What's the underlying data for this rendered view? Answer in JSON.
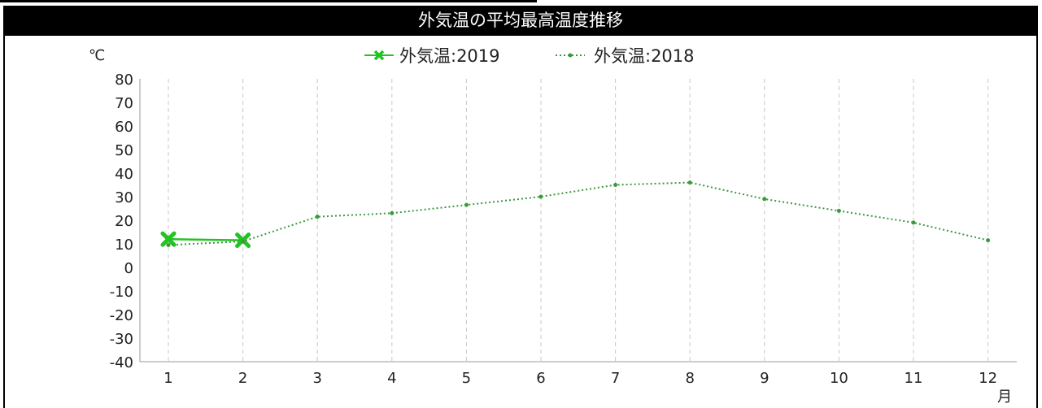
{
  "chart_data": {
    "type": "line",
    "title": "外気温の平均最高温度推移",
    "ylabel": "℃",
    "xlabel": "月",
    "categories": [
      "1",
      "2",
      "3",
      "4",
      "5",
      "6",
      "7",
      "8",
      "9",
      "10",
      "11",
      "12"
    ],
    "ylim": [
      -40,
      80
    ],
    "yticks": [
      80,
      70,
      60,
      50,
      40,
      30,
      20,
      10,
      0,
      -10,
      -20,
      -30,
      -40
    ],
    "grid": "vertical-dashed",
    "legend_position": "top-center",
    "series": [
      {
        "name": "外気温:2019",
        "color": "#22c322",
        "style": "solid-x-marker",
        "values": [
          12,
          11.5,
          null,
          null,
          null,
          null,
          null,
          null,
          null,
          null,
          null,
          null
        ]
      },
      {
        "name": "外気温:2018",
        "color": "#3a9a3a",
        "style": "dotted-small-dot",
        "values": [
          9.5,
          11,
          21.5,
          23,
          26.5,
          30,
          35,
          36,
          29,
          24,
          19,
          11.5
        ]
      }
    ]
  }
}
